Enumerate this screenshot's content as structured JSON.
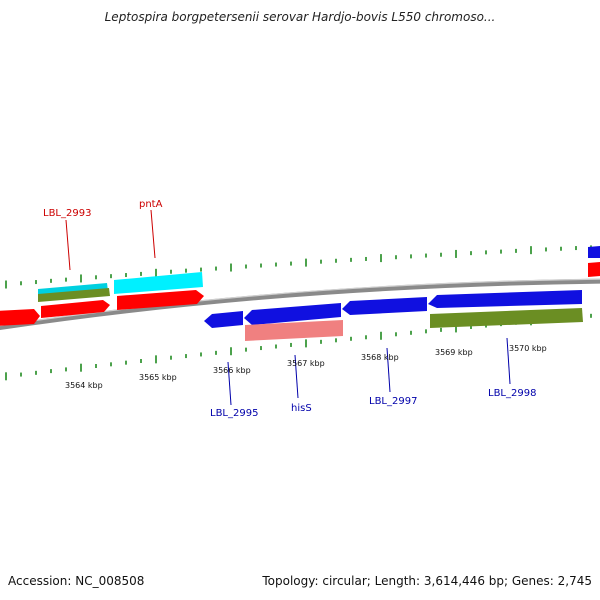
{
  "header": {
    "title": "Leptospira borgpetersenii serovar Hardjo-bovis L550 chromoso..."
  },
  "footer": {
    "accession": "Accession: NC_008508",
    "summary": "Topology: circular; Length: 3,614,446 bp; Genes: 2,745"
  },
  "map": {
    "scale_labels": [
      "3564 kbp",
      "3565 kbp",
      "3566 kbp",
      "3567 kbp",
      "3568 kbp",
      "3569 kbp",
      "3570 kbp"
    ],
    "forward_gene_labels": [
      "LBL_2993",
      "pntA"
    ],
    "reverse_gene_labels": [
      "LBL_2995",
      "hisS",
      "LBL_2997",
      "LBL_2998"
    ],
    "colors": {
      "forward_strand_gene": "#ff0000",
      "forward_strand_feature": "#00e5f0",
      "reverse_strand_gene": "#1010e0",
      "reverse_strand_feature": "#f08080",
      "secondary_feature": "#6b8e23",
      "backbone": "#8a8a8a",
      "ticks": "#1f8a1f",
      "forward_label": "#cc0000",
      "reverse_label": "#0000aa"
    }
  }
}
